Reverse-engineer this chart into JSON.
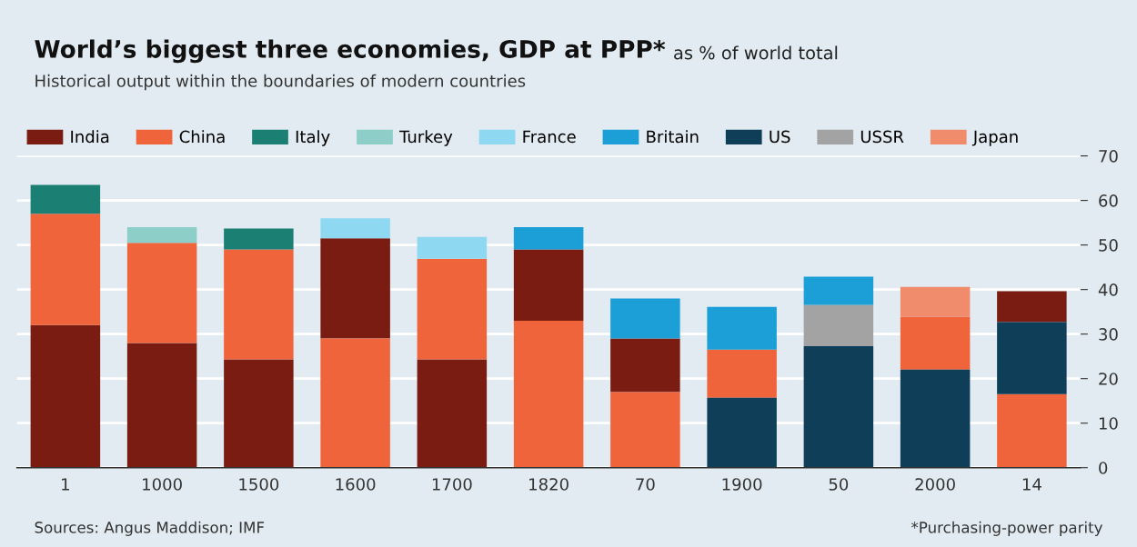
{
  "chart_data": {
    "type": "bar",
    "title": "World’s biggest three economies, GDP at PPP*",
    "subtitle": "Historical output within the boundaries of modern countries",
    "categories": [
      "1",
      "1000",
      "1500",
      "1600",
      "1700",
      "1820",
      "70",
      "1900",
      "50",
      "2000",
      "14"
    ],
    "series": [
      {
        "name": "India",
        "color": "#7a1c12",
        "values": [
          32,
          28,
          24.3,
          22.5,
          24.3,
          16,
          12,
          null,
          null,
          null,
          6.9
        ],
        "base": [
          0,
          0,
          0,
          29,
          0,
          33,
          17,
          null,
          null,
          null,
          32.7
        ]
      },
      {
        "name": "China",
        "color": "#f0643c",
        "values": [
          25,
          22.5,
          24.7,
          29,
          22.6,
          33,
          17,
          10.8,
          null,
          11.9,
          16.5
        ],
        "base": [
          32,
          28,
          24.3,
          0,
          24.3,
          0,
          0,
          15.7,
          null,
          22,
          0
        ]
      },
      {
        "name": "Italy",
        "color": "#1b7f73",
        "values": [
          6.5,
          null,
          4.7,
          null,
          null,
          null,
          null,
          null,
          null,
          null,
          null
        ],
        "base": [
          57,
          null,
          49,
          null,
          null,
          null,
          null,
          null,
          null,
          null,
          null
        ]
      },
      {
        "name": "Turkey",
        "color": "#8dcfc8",
        "values": [
          null,
          3.5,
          null,
          null,
          null,
          null,
          null,
          null,
          null,
          null,
          null
        ],
        "base": [
          null,
          50.5,
          null,
          null,
          null,
          null,
          null,
          null,
          null,
          null,
          null
        ]
      },
      {
        "name": "France",
        "color": "#8fd8f2",
        "values": [
          null,
          null,
          null,
          4.5,
          4.9,
          null,
          null,
          null,
          null,
          null,
          null
        ],
        "base": [
          null,
          null,
          null,
          51.5,
          46.9,
          null,
          null,
          null,
          null,
          null,
          null
        ]
      },
      {
        "name": "Britain",
        "color": "#1b9fd6",
        "values": [
          null,
          null,
          null,
          null,
          null,
          5,
          9,
          9.6,
          6.4,
          null,
          null
        ],
        "base": [
          null,
          null,
          null,
          null,
          null,
          49,
          29,
          26.5,
          36.5,
          null,
          null
        ]
      },
      {
        "name": "US",
        "color": "#0e3e58",
        "values": [
          null,
          null,
          null,
          null,
          null,
          null,
          null,
          15.7,
          27.3,
          22,
          16.2
        ],
        "base": [
          null,
          null,
          null,
          null,
          null,
          null,
          null,
          0,
          0,
          0,
          16.5
        ]
      },
      {
        "name": "USSR",
        "color": "#a3a3a3",
        "values": [
          null,
          null,
          null,
          null,
          null,
          null,
          null,
          null,
          9.2,
          null,
          null
        ],
        "base": [
          null,
          null,
          null,
          null,
          null,
          null,
          null,
          null,
          27.3,
          null,
          null
        ]
      },
      {
        "name": "Japan",
        "color": "#f08c6c",
        "values": [
          null,
          null,
          null,
          null,
          null,
          null,
          null,
          null,
          null,
          6.7,
          null
        ],
        "base": [
          null,
          null,
          null,
          null,
          null,
          null,
          null,
          null,
          null,
          33.9,
          null
        ]
      }
    ],
    "ylim": [
      0,
      70
    ],
    "yticks": [
      0,
      10,
      20,
      30,
      40,
      50,
      60,
      70
    ],
    "grid": "y",
    "legend": "top",
    "annotations": [
      "as % of world total",
      "Sources: Angus Maddison; IMF",
      "*Purchasing-power parity"
    ]
  }
}
